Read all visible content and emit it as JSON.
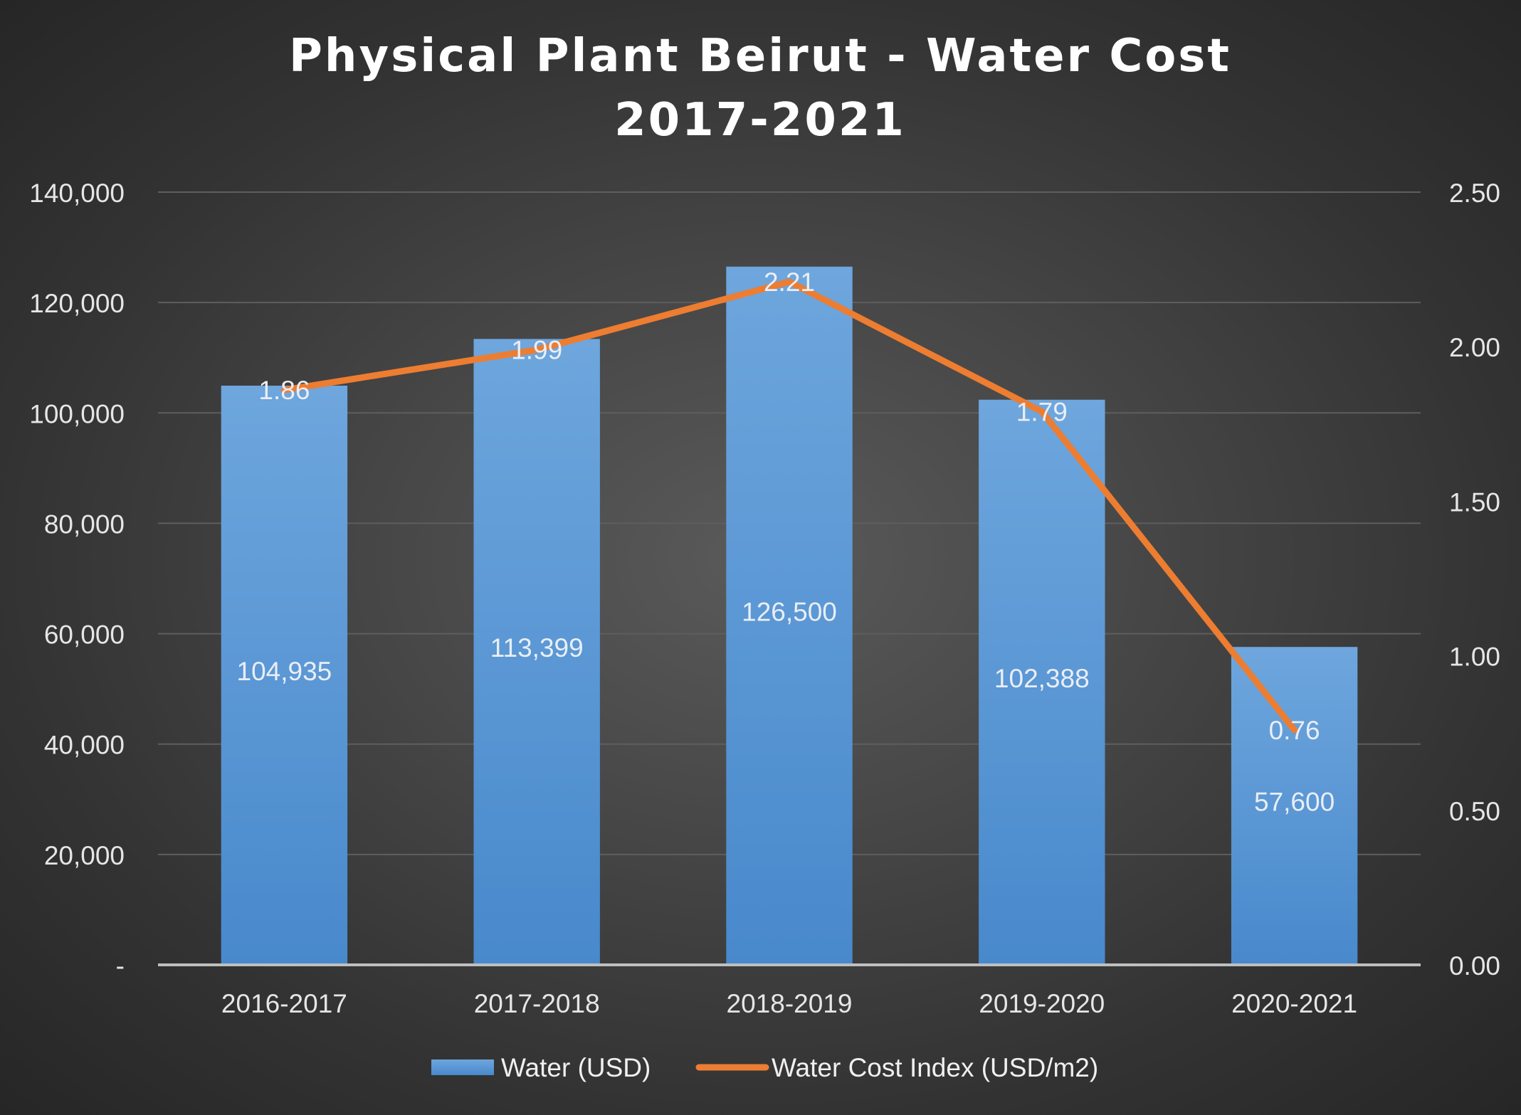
{
  "chart_data": {
    "type": "bar",
    "title": "Physical Plant Beirut - Water Cost",
    "subtitle": "2017-2021",
    "categories": [
      "2016-2017",
      "2017-2018",
      "2018-2019",
      "2019-2020",
      "2020-2021"
    ],
    "series": [
      {
        "name": "Water (USD)",
        "type": "bar",
        "axis": "left",
        "values": [
          104935,
          113399,
          126500,
          102388,
          57600
        ],
        "labels": [
          "104,935",
          "113,399",
          "126,500",
          "102,388",
          "57,600"
        ]
      },
      {
        "name": "Water Cost Index (USD/m2)",
        "type": "line",
        "axis": "right",
        "values": [
          1.86,
          1.99,
          2.21,
          1.79,
          0.76
        ],
        "labels": [
          "1.86",
          "1.99",
          "2.21",
          "1.79",
          "0.76"
        ]
      }
    ],
    "y_left": {
      "ylim": [
        0,
        140000
      ],
      "ticks": [
        0,
        20000,
        40000,
        60000,
        80000,
        100000,
        120000,
        140000
      ],
      "tick_labels": [
        "-",
        "20,000",
        "40,000",
        "60,000",
        "80,000",
        "100,000",
        "120,000",
        "140,000"
      ]
    },
    "y_right": {
      "ylim": [
        0,
        2.5
      ],
      "ticks": [
        0,
        0.5,
        1,
        1.5,
        2,
        2.5
      ],
      "tick_labels": [
        "0.00",
        "0.50",
        "1.00",
        "1.50",
        "2.00",
        "2.50"
      ]
    },
    "grid": true,
    "legend_position": "bottom",
    "colors": {
      "bar": "#5b9bd5",
      "line": "#ed7d31",
      "grid": "#5e5e5e",
      "axis": "#bfbfbf"
    }
  }
}
